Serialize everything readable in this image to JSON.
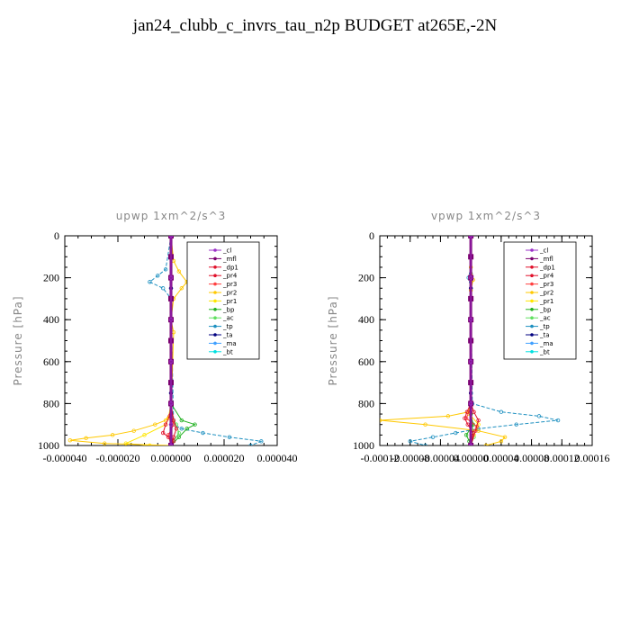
{
  "title": "jan24_clubb_c_invrs_tau_n2p  BUDGET at265E,-2N",
  "colors": {
    "cl": "#9b30c8",
    "mfl": "#7a0070",
    "dp1": "#e0102a",
    "pr4": "#e0102a",
    "pr3": "#ff4040",
    "pr2": "#ffc800",
    "pr1": "#ffe600",
    "bp": "#20b020",
    "ac": "#60e060",
    "tp": "#1e90c0",
    "ta": "#000080",
    "ma": "#40a0ff",
    "bt": "#00e0e0"
  },
  "chart_data": [
    {
      "type": "line",
      "title": "upwp   1xm^2/s^3",
      "ylabel": "Pressure  [hPa]",
      "xlabel": "",
      "xlim": [
        -4e-05,
        4e-05
      ],
      "ylim": [
        1000,
        0
      ],
      "xticks": [
        -4e-05,
        -2e-05,
        0.0,
        2e-05,
        4e-05
      ],
      "xtick_labels": [
        "-0.000040",
        "-0.000020",
        "0.000000",
        "0.000020",
        "0.000040"
      ],
      "yticks": [
        0,
        200,
        400,
        600,
        800,
        1000
      ],
      "ytick_labels": [
        "0",
        "200",
        "400",
        "600",
        "800",
        "1000"
      ],
      "legend_position": "top-right",
      "series": [
        {
          "name": "_cl",
          "key": "cl",
          "x": [
            0,
            0,
            0,
            0,
            0,
            0,
            0
          ],
          "y": [
            0,
            200,
            400,
            600,
            800,
            900,
            1000
          ]
        },
        {
          "name": "_mfl",
          "key": "mfl",
          "x": [
            0,
            0,
            0,
            0,
            0,
            0,
            0,
            0,
            0,
            0
          ],
          "y": [
            0,
            100,
            200,
            300,
            400,
            500,
            600,
            700,
            800,
            1000
          ]
        },
        {
          "name": "_dp1",
          "key": "dp1",
          "x": [
            0,
            0,
            0,
            -5e-07,
            -2e-06,
            -3e-06,
            -1e-06,
            1e-06,
            0
          ],
          "y": [
            0,
            400,
            800,
            860,
            900,
            940,
            960,
            980,
            1000
          ]
        },
        {
          "name": "_pr4",
          "key": "pr4",
          "x": [
            0,
            0,
            1e-06,
            2e-06,
            1e-06,
            0
          ],
          "y": [
            0,
            800,
            880,
            920,
            960,
            1000
          ]
        },
        {
          "name": "_pr3",
          "key": "pr3",
          "x": [
            0,
            0,
            1e-06,
            -1e-06,
            0
          ],
          "y": [
            0,
            850,
            900,
            950,
            1000
          ]
        },
        {
          "name": "_pr2",
          "key": "pr2",
          "x": [
            0,
            1e-06,
            3e-06,
            6e-06,
            4e-06,
            1e-06,
            0,
            1e-06,
            0,
            -2e-06,
            -6e-06,
            -1.4e-05,
            -2.2e-05,
            -3.2e-05,
            -3.8e-05,
            -2.5e-05,
            0
          ],
          "y": [
            0,
            120,
            170,
            220,
            250,
            300,
            400,
            460,
            850,
            880,
            900,
            930,
            950,
            965,
            975,
            990,
            1000
          ]
        },
        {
          "name": "_pr1",
          "key": "pr1",
          "x": [
            0,
            0,
            -1e-06,
            -2e-06,
            -1e-05,
            -1.7e-05,
            -8e-06,
            0
          ],
          "y": [
            0,
            800,
            870,
            900,
            950,
            990,
            1000,
            1000
          ]
        },
        {
          "name": "_bp",
          "key": "bp",
          "x": [
            0,
            0,
            4e-06,
            9e-06,
            6e-06,
            3e-06,
            0
          ],
          "y": [
            0,
            800,
            880,
            900,
            920,
            960,
            1000
          ]
        },
        {
          "name": "_ac",
          "key": "ac",
          "x": [
            0,
            0,
            2e-06,
            3e-06,
            1e-06,
            0
          ],
          "y": [
            0,
            850,
            900,
            940,
            980,
            1000
          ]
        },
        {
          "name": "_tp",
          "key": "tp",
          "x": [
            0,
            -2e-06,
            -5e-06,
            -8e-06,
            -3e-06,
            0,
            1e-06,
            4e-06,
            1.2e-05,
            2.2e-05,
            3.4e-05,
            3e-05
          ],
          "y": [
            0,
            160,
            190,
            220,
            250,
            300,
            900,
            920,
            940,
            960,
            980,
            1000
          ]
        },
        {
          "name": "_ta",
          "key": "ta",
          "x": [
            0,
            0,
            0,
            0,
            0
          ],
          "y": [
            0,
            250,
            500,
            750,
            1000
          ]
        },
        {
          "name": "_ma",
          "key": "ma",
          "x": [
            0,
            0,
            0,
            0,
            0
          ],
          "y": [
            0,
            250,
            500,
            750,
            1000
          ]
        },
        {
          "name": "_bt",
          "key": "bt",
          "x": [
            0,
            0,
            0,
            0,
            0
          ],
          "y": [
            0,
            250,
            500,
            750,
            1000
          ]
        }
      ]
    },
    {
      "type": "line",
      "title": "vpwp   1xm^2/s^3",
      "ylabel": "Pressure  [hPa]",
      "xlabel": "",
      "xlim": [
        -0.00012,
        0.00016
      ],
      "ylim": [
        1000,
        0
      ],
      "xticks": [
        -0.00012,
        -8e-05,
        -4e-05,
        0.0,
        4e-05,
        8e-05,
        0.00012,
        0.00016
      ],
      "xtick_labels": [
        "-0.00012",
        "-0.00008",
        "-0.00004",
        "0.00000",
        "0.00004",
        "0.00008",
        "0.00012",
        "0.00016"
      ],
      "yticks": [
        0,
        200,
        400,
        600,
        800,
        1000
      ],
      "ytick_labels": [
        "0",
        "200",
        "400",
        "600",
        "800",
        "1000"
      ],
      "legend_position": "top-right",
      "series": [
        {
          "name": "_cl",
          "key": "cl",
          "x": [
            0,
            0,
            0,
            0,
            0,
            0
          ],
          "y": [
            0,
            200,
            400,
            600,
            800,
            1000
          ]
        },
        {
          "name": "_mfl",
          "key": "mfl",
          "x": [
            0,
            0,
            0,
            0,
            0,
            0,
            0,
            0,
            0,
            0
          ],
          "y": [
            0,
            100,
            200,
            300,
            400,
            500,
            600,
            700,
            800,
            1000
          ]
        },
        {
          "name": "_dp1",
          "key": "dp1",
          "x": [
            0,
            0,
            -5e-06,
            -8e-06,
            -4e-06,
            3e-06,
            0
          ],
          "y": [
            0,
            800,
            840,
            870,
            900,
            940,
            1000
          ]
        },
        {
          "name": "_pr4",
          "key": "pr4",
          "x": [
            0,
            0,
            4e-06,
            1e-05,
            6e-06,
            0
          ],
          "y": [
            0,
            800,
            840,
            880,
            930,
            1000
          ]
        },
        {
          "name": "_pr3",
          "key": "pr3",
          "x": [
            0,
            0,
            -6e-06,
            8e-06,
            0
          ],
          "y": [
            0,
            820,
            870,
            910,
            1000
          ]
        },
        {
          "name": "_pr2",
          "key": "pr2",
          "x": [
            0,
            0,
            3e-06,
            0,
            0,
            -3e-06,
            -3e-05,
            -0.00012,
            -6e-05,
            1e-05,
            4.5e-05,
            4e-05,
            2e-05
          ],
          "y": [
            0,
            150,
            210,
            260,
            800,
            840,
            860,
            880,
            900,
            930,
            960,
            980,
            1000
          ]
        },
        {
          "name": "_pr1",
          "key": "pr1",
          "x": [
            0,
            0,
            -2e-06,
            1e-05,
            4e-06,
            0
          ],
          "y": [
            0,
            800,
            850,
            900,
            950,
            1000
          ]
        },
        {
          "name": "_bp",
          "key": "bp",
          "x": [
            0,
            0,
            3e-06,
            -6e-06,
            -2e-06,
            0
          ],
          "y": [
            0,
            850,
            900,
            950,
            980,
            1000
          ]
        },
        {
          "name": "_ac",
          "key": "ac",
          "x": [
            0,
            0,
            2e-06,
            4e-06,
            0
          ],
          "y": [
            0,
            850,
            900,
            960,
            1000
          ]
        },
        {
          "name": "_tp",
          "key": "tp",
          "x": [
            0,
            0,
            -3e-06,
            0,
            2e-06,
            4e-05,
            9e-05,
            0.000115,
            6e-05,
            1e-05,
            -2e-05,
            -5e-05,
            -8e-05,
            -6e-05
          ],
          "y": [
            0,
            180,
            200,
            220,
            800,
            840,
            860,
            880,
            900,
            920,
            940,
            960,
            980,
            1000
          ]
        },
        {
          "name": "_ta",
          "key": "ta",
          "x": [
            0,
            0,
            0,
            0,
            0
          ],
          "y": [
            0,
            250,
            500,
            750,
            1000
          ]
        },
        {
          "name": "_ma",
          "key": "ma",
          "x": [
            0,
            0,
            0,
            0,
            0
          ],
          "y": [
            0,
            250,
            500,
            750,
            1000
          ]
        },
        {
          "name": "_bt",
          "key": "bt",
          "x": [
            0,
            0,
            0,
            0,
            0
          ],
          "y": [
            0,
            250,
            500,
            750,
            1000
          ]
        }
      ]
    }
  ]
}
